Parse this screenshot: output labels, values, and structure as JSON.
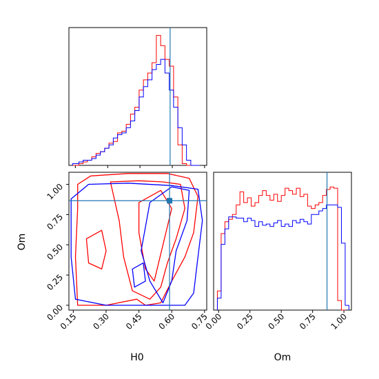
{
  "chart_data": {
    "type": "corner",
    "parameters": [
      "H0",
      "Om"
    ],
    "truth": {
      "H0": 0.59,
      "Om": 0.865
    },
    "marginal_H0": {
      "type": "step-histogram",
      "xlim": [
        0.12,
        0.76
      ],
      "series": [
        {
          "color": "#ff0000",
          "edges": [
            0.137,
            0.166,
            0.186,
            0.206,
            0.226,
            0.246,
            0.266,
            0.286,
            0.306,
            0.326,
            0.346,
            0.366,
            0.386,
            0.406,
            0.426,
            0.446,
            0.466,
            0.486,
            0.506,
            0.526,
            0.546,
            0.566,
            0.586,
            0.606,
            0.626,
            0.646,
            0.666,
            0.686,
            0.706,
            0.726
          ],
          "values": [
            0,
            1,
            2,
            3,
            5,
            7,
            8,
            10,
            13,
            14,
            19,
            20,
            24,
            30,
            34,
            44,
            50,
            54,
            60,
            76,
            70,
            62,
            58,
            40,
            12,
            1,
            0,
            0,
            0
          ]
        },
        {
          "color": "#0000ff",
          "edges": [
            0.137,
            0.166,
            0.186,
            0.206,
            0.226,
            0.246,
            0.266,
            0.286,
            0.306,
            0.326,
            0.346,
            0.366,
            0.386,
            0.406,
            0.426,
            0.446,
            0.466,
            0.486,
            0.506,
            0.526,
            0.546,
            0.566,
            0.586,
            0.606,
            0.626,
            0.646,
            0.666,
            0.686,
            0.706,
            0.726
          ],
          "values": [
            1,
            2,
            3,
            3,
            4,
            6,
            8,
            10,
            12,
            16,
            18,
            19,
            22,
            26,
            32,
            40,
            46,
            50,
            56,
            59,
            62,
            54,
            44,
            34,
            22,
            12,
            3,
            0,
            0
          ]
        }
      ]
    },
    "marginal_Om": {
      "type": "step-histogram",
      "xlim": [
        -0.04,
        1.06
      ],
      "xticks": [
        "0.00",
        "0.25",
        "0.50",
        "0.75",
        "1.00"
      ],
      "xtick_values": [
        0,
        0.25,
        0.5,
        0.75,
        1.0
      ],
      "xlabel": "Om",
      "series": [
        {
          "color": "#ff0000",
          "edges": [
            -0.01,
            0.02,
            0.05,
            0.08,
            0.11,
            0.14,
            0.17,
            0.2,
            0.23,
            0.26,
            0.29,
            0.32,
            0.35,
            0.38,
            0.41,
            0.44,
            0.47,
            0.5,
            0.53,
            0.56,
            0.59,
            0.62,
            0.65,
            0.68,
            0.71,
            0.74,
            0.77,
            0.8,
            0.83,
            0.86,
            0.89,
            0.92,
            0.95,
            0.98,
            1.01
          ],
          "values": [
            0.16,
            0.64,
            0.74,
            0.76,
            0.8,
            0.88,
            0.99,
            0.9,
            0.94,
            0.87,
            0.9,
            0.96,
            1.0,
            0.96,
            0.92,
            0.97,
            0.91,
            0.96,
            1.02,
            1.0,
            0.97,
            1.02,
            0.95,
            0.97,
            0.87,
            0.85,
            0.88,
            0.9,
            0.96,
            1.01,
            1.03,
            1.02,
            0.08,
            0
          ]
        },
        {
          "color": "#0000ff",
          "edges": [
            -0.01,
            0.02,
            0.05,
            0.08,
            0.11,
            0.14,
            0.17,
            0.2,
            0.23,
            0.26,
            0.29,
            0.32,
            0.35,
            0.38,
            0.41,
            0.44,
            0.47,
            0.5,
            0.53,
            0.56,
            0.59,
            0.62,
            0.65,
            0.68,
            0.71,
            0.74,
            0.77,
            0.8,
            0.83,
            0.86,
            0.89,
            0.92,
            0.95,
            0.98,
            1.01,
            1.04
          ],
          "values": [
            0.1,
            0.55,
            0.68,
            0.78,
            0.78,
            0.77,
            0.77,
            0.74,
            0.77,
            0.75,
            0.7,
            0.74,
            0.71,
            0.72,
            0.7,
            0.73,
            0.75,
            0.7,
            0.72,
            0.7,
            0.75,
            0.73,
            0.76,
            0.74,
            0.72,
            0.8,
            0.8,
            0.83,
            0.85,
            0.88,
            0.88,
            0.88,
            0.86,
            0.56,
            0.04
          ]
        }
      ]
    },
    "joint_H0_Om": {
      "type": "contour",
      "xlim": [
        0.13,
        0.76
      ],
      "ylim": [
        -0.04,
        1.1
      ],
      "xticks": [
        "0.15",
        "0.30",
        "0.45",
        "0.60",
        "0.75"
      ],
      "xtick_values": [
        0.15,
        0.3,
        0.45,
        0.6,
        0.75
      ],
      "yticks": [
        "0.00",
        "0.25",
        "0.50",
        "0.75",
        "1.00"
      ],
      "ytick_values": [
        0,
        0.25,
        0.5,
        0.75,
        1.0
      ],
      "xlabel": "H0",
      "ylabel": "Om",
      "series": [
        {
          "color": "#ff0000",
          "contours": [
            [
              [
                0.17,
                1.0
              ],
              [
                0.23,
                1.07
              ],
              [
                0.4,
                1.09
              ],
              [
                0.58,
                1.09
              ],
              [
                0.68,
                1.05
              ],
              [
                0.72,
                0.9
              ],
              [
                0.7,
                0.6
              ],
              [
                0.66,
                0.4
              ],
              [
                0.6,
                0.2
              ],
              [
                0.55,
                0.02
              ],
              [
                0.48,
                0.0
              ],
              [
                0.44,
                0.05
              ],
              [
                0.3,
                0.0
              ],
              [
                0.17,
                0.0
              ],
              [
                0.16,
                0.4
              ],
              [
                0.17,
                0.8
              ],
              [
                0.17,
                1.0
              ]
            ],
            [
              [
                0.32,
                1.02
              ],
              [
                0.45,
                1.03
              ],
              [
                0.56,
                1.02
              ],
              [
                0.64,
                1.0
              ],
              [
                0.66,
                0.8
              ],
              [
                0.62,
                0.55
              ],
              [
                0.58,
                0.35
              ],
              [
                0.55,
                0.15
              ],
              [
                0.5,
                0.05
              ],
              [
                0.42,
                0.12
              ],
              [
                0.38,
                0.4
              ],
              [
                0.36,
                0.7
              ],
              [
                0.32,
                1.02
              ]
            ],
            [
              [
                0.45,
                0.85
              ],
              [
                0.55,
                0.95
              ],
              [
                0.6,
                0.8
              ],
              [
                0.56,
                0.5
              ],
              [
                0.52,
                0.2
              ],
              [
                0.48,
                0.3
              ],
              [
                0.45,
                0.6
              ],
              [
                0.45,
                0.85
              ]
            ],
            [
              [
                0.21,
                0.55
              ],
              [
                0.28,
                0.62
              ],
              [
                0.3,
                0.45
              ],
              [
                0.28,
                0.3
              ],
              [
                0.22,
                0.35
              ],
              [
                0.21,
                0.55
              ]
            ]
          ]
        },
        {
          "color": "#0000ff",
          "contours": [
            [
              [
                0.14,
                0.88
              ],
              [
                0.22,
                1.0
              ],
              [
                0.4,
                1.01
              ],
              [
                0.6,
                0.99
              ],
              [
                0.72,
                0.96
              ],
              [
                0.74,
                0.7
              ],
              [
                0.72,
                0.4
              ],
              [
                0.7,
                0.1
              ],
              [
                0.66,
                0.0
              ],
              [
                0.5,
                0.0
              ],
              [
                0.3,
                0.0
              ],
              [
                0.16,
                0.05
              ],
              [
                0.14,
                0.4
              ],
              [
                0.14,
                0.88
              ]
            ],
            [
              [
                0.5,
                0.85
              ],
              [
                0.6,
                0.98
              ],
              [
                0.68,
                0.95
              ],
              [
                0.67,
                0.7
              ],
              [
                0.62,
                0.45
              ],
              [
                0.6,
                0.2
              ],
              [
                0.56,
                0.02
              ],
              [
                0.5,
                0.2
              ],
              [
                0.46,
                0.45
              ],
              [
                0.5,
                0.85
              ]
            ],
            [
              [
                0.42,
                0.3
              ],
              [
                0.47,
                0.35
              ],
              [
                0.48,
                0.2
              ],
              [
                0.43,
                0.15
              ],
              [
                0.42,
                0.3
              ]
            ]
          ]
        }
      ]
    }
  }
}
